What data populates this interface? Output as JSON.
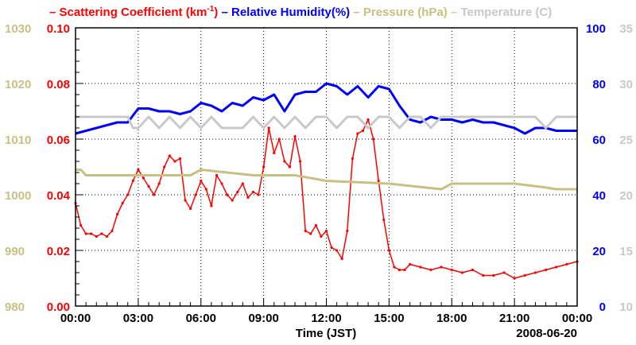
{
  "chart_data": {
    "type": "line",
    "xlabel": "Time (JST)",
    "date_label": "2008-06-20",
    "x_ticks": [
      "00:00",
      "03:00",
      "06:00",
      "09:00",
      "12:00",
      "15:00",
      "18:00",
      "21:00",
      "00:00"
    ],
    "x_range_hours": [
      0,
      24
    ],
    "grid": true,
    "legend": [
      {
        "name": "Scattering Coefficient (km",
        "sup": "-1",
        "after": ")",
        "color": "#ff0000"
      },
      {
        "name": "Relative Humidity(%)",
        "color": "#0000ff"
      },
      {
        "name": "Pressure (hPa)",
        "color": "#c8c080"
      },
      {
        "name": "Temperature (C)",
        "color": "#c8c8c8"
      }
    ],
    "axes": {
      "pressure": {
        "ticks": [
          "1030",
          "1020",
          "1010",
          "1000",
          "990",
          "980"
        ],
        "range": [
          980,
          1030
        ],
        "color": "#c8c080"
      },
      "scattering": {
        "ticks": [
          "0.10",
          "0.08",
          "0.06",
          "0.04",
          "0.02",
          "0.00"
        ],
        "range": [
          0,
          0.1
        ],
        "color": "#ff0000"
      },
      "humidity": {
        "ticks": [
          "100",
          "80",
          "60",
          "40",
          "20",
          "0"
        ],
        "range": [
          0,
          100
        ],
        "color": "#0000ff"
      },
      "temperature": {
        "ticks": [
          "35",
          "30",
          "25",
          "20",
          "15",
          "10"
        ],
        "range": [
          10,
          35
        ],
        "color": "#c8c8c8"
      }
    },
    "series": [
      {
        "name": "Scattering Coefficient",
        "axis": "scattering",
        "color": "#ff0000",
        "x": [
          0,
          0.25,
          0.5,
          0.75,
          1,
          1.25,
          1.5,
          1.75,
          2,
          2.25,
          2.5,
          2.75,
          3,
          3.25,
          3.5,
          3.75,
          4,
          4.25,
          4.5,
          4.75,
          5,
          5.25,
          5.5,
          5.75,
          6,
          6.25,
          6.5,
          6.75,
          7,
          7.25,
          7.5,
          7.75,
          8,
          8.25,
          8.5,
          8.75,
          9,
          9.25,
          9.5,
          9.75,
          10,
          10.25,
          10.5,
          10.75,
          11,
          11.25,
          11.5,
          11.75,
          12,
          12.25,
          12.5,
          12.75,
          13,
          13.25,
          13.5,
          13.75,
          14,
          14.25,
          14.5,
          14.75,
          15,
          15.25,
          15.5,
          15.75,
          16,
          16.5,
          17,
          17.5,
          18,
          18.5,
          19,
          19.5,
          20,
          20.5,
          21,
          21.5,
          22,
          22.5,
          23,
          23.5,
          24
        ],
        "values": [
          0.037,
          0.029,
          0.026,
          0.026,
          0.025,
          0.026,
          0.025,
          0.027,
          0.033,
          0.037,
          0.04,
          0.045,
          0.049,
          0.046,
          0.043,
          0.04,
          0.044,
          0.05,
          0.054,
          0.052,
          0.053,
          0.038,
          0.035,
          0.04,
          0.045,
          0.042,
          0.036,
          0.047,
          0.044,
          0.04,
          0.038,
          0.041,
          0.044,
          0.039,
          0.041,
          0.04,
          0.05,
          0.064,
          0.055,
          0.06,
          0.052,
          0.05,
          0.061,
          0.052,
          0.027,
          0.026,
          0.029,
          0.025,
          0.027,
          0.021,
          0.02,
          0.017,
          0.027,
          0.053,
          0.062,
          0.063,
          0.067,
          0.06,
          0.045,
          0.031,
          0.02,
          0.014,
          0.013,
          0.013,
          0.015,
          0.014,
          0.013,
          0.014,
          0.013,
          0.012,
          0.013,
          0.011,
          0.011,
          0.012,
          0.01,
          0.011,
          0.012,
          0.013,
          0.014,
          0.015,
          0.016
        ]
      },
      {
        "name": "Relative Humidity",
        "axis": "humidity",
        "color": "#0000ff",
        "x": [
          0,
          0.5,
          1,
          1.5,
          2,
          2.5,
          3,
          3.5,
          4,
          4.5,
          5,
          5.5,
          6,
          6.5,
          7,
          7.5,
          8,
          8.5,
          9,
          9.5,
          10,
          10.5,
          11,
          11.5,
          12,
          12.5,
          13,
          13.5,
          14,
          14.5,
          15,
          15.5,
          16,
          16.5,
          17,
          17.5,
          18,
          18.5,
          19,
          19.5,
          20,
          20.5,
          21,
          21.5,
          22,
          22.5,
          23,
          23.5,
          24
        ],
        "values": [
          62,
          63,
          64,
          65,
          66,
          66,
          71,
          71,
          70,
          70,
          69,
          70,
          73,
          72,
          70,
          73,
          72,
          75,
          74,
          76,
          70,
          76,
          77,
          77,
          80,
          79,
          76,
          79,
          75,
          79,
          78,
          72,
          67,
          66,
          68,
          67,
          67,
          66,
          67,
          66,
          66,
          65,
          64,
          62,
          64,
          64,
          63,
          63,
          63
        ]
      },
      {
        "name": "Pressure",
        "axis": "pressure",
        "color": "#c8c080",
        "x": [
          0,
          0.25,
          0.5,
          3,
          5.5,
          6,
          8.5,
          10.5,
          12,
          15,
          17.5,
          18,
          20,
          21,
          22.5,
          23,
          24
        ],
        "values": [
          1004.5,
          1004.5,
          1003.5,
          1003.5,
          1003.5,
          1004.5,
          1003.5,
          1003.5,
          1002.5,
          1002,
          1001,
          1002,
          1002,
          1002,
          1001.3,
          1001,
          1001
        ]
      },
      {
        "name": "Temperature",
        "axis": "temperature",
        "color": "#c8c8c8",
        "x": [
          0,
          2.5,
          2.75,
          3,
          3.5,
          4,
          4.5,
          5,
          5.5,
          6,
          6.5,
          7,
          7.5,
          8,
          8.5,
          9,
          9.5,
          10,
          10.5,
          11,
          11.5,
          12,
          12.5,
          13,
          13.5,
          14,
          14.5,
          15,
          15.5,
          16,
          16.5,
          17,
          17.5,
          18,
          18.5,
          19,
          19.5,
          20,
          20.5,
          21,
          21.5,
          22,
          22.5,
          23,
          23.5,
          24
        ],
        "values": [
          27,
          27,
          26,
          26,
          27,
          26,
          27,
          26,
          27,
          26,
          27,
          26,
          26,
          26,
          27,
          26,
          27,
          26,
          27,
          26,
          27,
          27,
          26,
          27,
          27,
          26,
          27,
          27,
          26,
          27,
          27,
          26,
          27,
          27,
          27,
          27,
          27,
          27,
          27,
          27,
          27,
          27,
          26,
          27,
          27,
          27
        ]
      }
    ]
  }
}
